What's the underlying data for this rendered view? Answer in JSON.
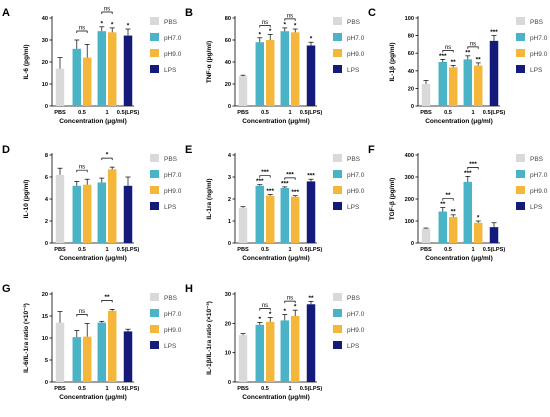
{
  "colors": {
    "PBS": "#d9d9d9",
    "pH7.0": "#4bb3c6",
    "pH9.0": "#f4b63b",
    "LPS": "#141a7a"
  },
  "chart_data": [
    {
      "type": "bar",
      "letter": "A",
      "ylabel": "IL-6 (pg/ml)",
      "xlabel": "Concentration (μg/ml)",
      "ylim": [
        0,
        40
      ],
      "yticks": [
        "0",
        "10",
        "20",
        "30",
        "40"
      ],
      "categories": [
        "PBS",
        "0.5",
        "1",
        "0.5(LPS)"
      ],
      "legend": [
        "PBS",
        "pH7.0",
        "pH9.0",
        "LPS"
      ],
      "bars": [
        {
          "series": "PBS",
          "cat": 0,
          "value": 17,
          "err": 5,
          "sig": ""
        },
        {
          "series": "pH7.0",
          "cat": 1,
          "value": 26,
          "err": 4,
          "sig": ""
        },
        {
          "series": "pH9.0",
          "cat": 1,
          "value": 22,
          "err": 6,
          "sig": ""
        },
        {
          "series": "pH7.0",
          "cat": 2,
          "value": 34,
          "err": 2,
          "sig": "*"
        },
        {
          "series": "pH9.0",
          "cat": 2,
          "value": 33.5,
          "err": 2,
          "sig": "*"
        },
        {
          "series": "LPS",
          "cat": 3,
          "value": 32,
          "err": 3,
          "sig": "*"
        }
      ],
      "brackets": [
        {
          "from": [
            1,
            0
          ],
          "to": [
            1,
            1
          ],
          "label": "ns",
          "level": 0
        },
        {
          "from": [
            2,
            0
          ],
          "to": [
            2,
            1
          ],
          "label": "ns",
          "level": 1
        }
      ]
    },
    {
      "type": "bar",
      "letter": "B",
      "ylabel": "TNF-α (pg/ml)",
      "xlabel": "Concentration (μg/ml)",
      "ylim": [
        0,
        80
      ],
      "yticks": [
        "0",
        "20",
        "40",
        "60",
        "80"
      ],
      "categories": [
        "PBS",
        "0.5",
        "1",
        "0.5(LPS)"
      ],
      "legend": [
        "PBS",
        "pH7.0",
        "pH9.0",
        "LPS"
      ],
      "bars": [
        {
          "series": "PBS",
          "cat": 0,
          "value": 27,
          "err": 1,
          "sig": ""
        },
        {
          "series": "pH7.0",
          "cat": 1,
          "value": 58,
          "err": 4,
          "sig": "*"
        },
        {
          "series": "pH9.0",
          "cat": 1,
          "value": 60,
          "err": 5,
          "sig": "*"
        },
        {
          "series": "pH7.0",
          "cat": 2,
          "value": 68,
          "err": 3,
          "sig": "*"
        },
        {
          "series": "pH9.0",
          "cat": 2,
          "value": 67,
          "err": 3,
          "sig": "*"
        },
        {
          "series": "LPS",
          "cat": 3,
          "value": 55,
          "err": 3,
          "sig": "*"
        }
      ],
      "brackets": [
        {
          "from": [
            1,
            0
          ],
          "to": [
            1,
            1
          ],
          "label": "ns",
          "level": 0
        },
        {
          "from": [
            2,
            0
          ],
          "to": [
            2,
            1
          ],
          "label": "ns",
          "level": 0
        }
      ]
    },
    {
      "type": "bar",
      "letter": "C",
      "ylabel": "IL-1β (pg/ml)",
      "xlabel": "Concentration (μg/ml)",
      "ylim": [
        0,
        100
      ],
      "yticks": [
        "0",
        "20",
        "40",
        "60",
        "80",
        "100"
      ],
      "categories": [
        "PBS",
        "0.5",
        "1",
        "0.5(LPS)"
      ],
      "legend": [
        "PBS",
        "pH7.0",
        "pH9.0",
        "LPS"
      ],
      "bars": [
        {
          "series": "PBS",
          "cat": 0,
          "value": 25,
          "err": 4,
          "sig": ""
        },
        {
          "series": "pH7.0",
          "cat": 1,
          "value": 50,
          "err": 3,
          "sig": "***"
        },
        {
          "series": "pH9.0",
          "cat": 1,
          "value": 44,
          "err": 2,
          "sig": "**"
        },
        {
          "series": "pH7.0",
          "cat": 2,
          "value": 53,
          "err": 4,
          "sig": "**"
        },
        {
          "series": "pH9.0",
          "cat": 2,
          "value": 46,
          "err": 3,
          "sig": "**"
        },
        {
          "series": "LPS",
          "cat": 3,
          "value": 74,
          "err": 6,
          "sig": "***"
        }
      ],
      "brackets": [
        {
          "from": [
            1,
            0
          ],
          "to": [
            1,
            1
          ],
          "label": "ns",
          "level": 0
        },
        {
          "from": [
            2,
            0
          ],
          "to": [
            2,
            1
          ],
          "label": "ns",
          "level": 0
        }
      ]
    },
    {
      "type": "bar",
      "letter": "D",
      "ylabel": "IL-10 (pg/ml)",
      "xlabel": "Concentration (μg/ml)",
      "ylim": [
        0,
        8
      ],
      "yticks": [
        "0",
        "2",
        "4",
        "6",
        "8"
      ],
      "categories": [
        "PBS",
        "0.5",
        "1",
        "0.5(LPS)"
      ],
      "legend": [
        "PBS",
        "pH7.0",
        "pH9.0",
        "LPS"
      ],
      "bars": [
        {
          "series": "PBS",
          "cat": 0,
          "value": 6.2,
          "err": 0.6,
          "sig": ""
        },
        {
          "series": "pH7.0",
          "cat": 1,
          "value": 5.2,
          "err": 0.4,
          "sig": ""
        },
        {
          "series": "pH9.0",
          "cat": 1,
          "value": 5.3,
          "err": 0.5,
          "sig": ""
        },
        {
          "series": "pH7.0",
          "cat": 2,
          "value": 5.5,
          "err": 0.4,
          "sig": ""
        },
        {
          "series": "pH9.0",
          "cat": 2,
          "value": 6.7,
          "err": 0.2,
          "sig": ""
        },
        {
          "series": "LPS",
          "cat": 3,
          "value": 5.2,
          "err": 0.8,
          "sig": ""
        }
      ],
      "brackets": [
        {
          "from": [
            1,
            0
          ],
          "to": [
            1,
            1
          ],
          "label": "ns",
          "level": 0
        },
        {
          "from": [
            2,
            0
          ],
          "to": [
            2,
            1
          ],
          "label": "*",
          "level": 0
        }
      ]
    },
    {
      "type": "bar",
      "letter": "E",
      "ylabel": "IL-1ra (ng/ml)",
      "xlabel": "Concentration (μg/ml)",
      "ylim": [
        0,
        4
      ],
      "yticks": [
        "0",
        "1",
        "2",
        "3",
        "4"
      ],
      "categories": [
        "PBS",
        "0.5",
        "1",
        "0.5(LPS)"
      ],
      "legend": [
        "PBS",
        "pH7.0",
        "pH9.0",
        "LPS"
      ],
      "bars": [
        {
          "series": "PBS",
          "cat": 0,
          "value": 1.6,
          "err": 0.05,
          "sig": ""
        },
        {
          "series": "pH7.0",
          "cat": 1,
          "value": 2.6,
          "err": 0.05,
          "sig": "***"
        },
        {
          "series": "pH9.0",
          "cat": 1,
          "value": 2.15,
          "err": 0.05,
          "sig": "***"
        },
        {
          "series": "pH7.0",
          "cat": 2,
          "value": 2.5,
          "err": 0.05,
          "sig": "***"
        },
        {
          "series": "pH9.0",
          "cat": 2,
          "value": 2.1,
          "err": 0.05,
          "sig": "***"
        },
        {
          "series": "LPS",
          "cat": 3,
          "value": 2.8,
          "err": 0.1,
          "sig": "***"
        }
      ],
      "brackets": [
        {
          "from": [
            1,
            0
          ],
          "to": [
            1,
            1
          ],
          "label": "***",
          "level": 0
        },
        {
          "from": [
            2,
            0
          ],
          "to": [
            2,
            1
          ],
          "label": "***",
          "level": 0
        }
      ]
    },
    {
      "type": "bar",
      "letter": "F",
      "ylabel": "TGF-β (pg/ml)",
      "xlabel": "Concentration (μg/ml)",
      "ylim": [
        0,
        400
      ],
      "yticks": [
        "0",
        "100",
        "200",
        "300",
        "400"
      ],
      "categories": [
        "PBS",
        "0.5",
        "1",
        "0.5(LPS)"
      ],
      "legend": [
        "PBS",
        "pH7.0",
        "pH9.0",
        "LPS"
      ],
      "bars": [
        {
          "series": "PBS",
          "cat": 0,
          "value": 65,
          "err": 3,
          "sig": ""
        },
        {
          "series": "pH7.0",
          "cat": 1,
          "value": 143,
          "err": 18,
          "sig": "**"
        },
        {
          "series": "pH9.0",
          "cat": 1,
          "value": 118,
          "err": 10,
          "sig": "**"
        },
        {
          "series": "pH7.0",
          "cat": 2,
          "value": 278,
          "err": 25,
          "sig": "***"
        },
        {
          "series": "pH9.0",
          "cat": 2,
          "value": 92,
          "err": 8,
          "sig": "*"
        },
        {
          "series": "LPS",
          "cat": 3,
          "value": 72,
          "err": 20,
          "sig": ""
        }
      ],
      "brackets": [
        {
          "from": [
            1,
            0
          ],
          "to": [
            1,
            1
          ],
          "label": "**",
          "level": 0
        },
        {
          "from": [
            2,
            0
          ],
          "to": [
            2,
            1
          ],
          "label": "***",
          "level": 0
        }
      ]
    },
    {
      "type": "bar",
      "letter": "G",
      "ylabel": "IL-6/IL-1ra ratio (×10⁻³)",
      "xlabel": "Concentration (μg/ml)",
      "ylim": [
        0,
        20
      ],
      "yticks": [
        "0",
        "5",
        "10",
        "15",
        "20"
      ],
      "categories": [
        "PBS",
        "0.5",
        "1",
        "0.5(LPS)"
      ],
      "legend": [
        "PBS",
        "pH7.0",
        "pH9.0",
        "LPS"
      ],
      "bars": [
        {
          "series": "PBS",
          "cat": 0,
          "value": 13.5,
          "err": 2.5,
          "sig": ""
        },
        {
          "series": "pH7.0",
          "cat": 1,
          "value": 10.2,
          "err": 1.5,
          "sig": ""
        },
        {
          "series": "pH9.0",
          "cat": 1,
          "value": 10.3,
          "err": 3,
          "sig": ""
        },
        {
          "series": "pH7.0",
          "cat": 2,
          "value": 13.5,
          "err": 0.3,
          "sig": ""
        },
        {
          "series": "pH9.0",
          "cat": 2,
          "value": 16.2,
          "err": 0.3,
          "sig": ""
        },
        {
          "series": "LPS",
          "cat": 3,
          "value": 11.5,
          "err": 0.5,
          "sig": ""
        }
      ],
      "brackets": [
        {
          "from": [
            1,
            0
          ],
          "to": [
            1,
            1
          ],
          "label": "ns",
          "level": 0
        },
        {
          "from": [
            2,
            0
          ],
          "to": [
            2,
            1
          ],
          "label": "**",
          "level": 0
        }
      ]
    },
    {
      "type": "bar",
      "letter": "H",
      "ylabel": "IL-1β/IL-1ra ratio (×10⁻³)",
      "xlabel": "Concentration (μg/ml)",
      "ylim": [
        0,
        30
      ],
      "yticks": [
        "0",
        "10",
        "20",
        "30"
      ],
      "categories": [
        "PBS",
        "0.5",
        "1",
        "0.5(LPS)"
      ],
      "legend": [
        "PBS",
        "pH7.0",
        "pH9.0",
        "LPS"
      ],
      "bars": [
        {
          "series": "PBS",
          "cat": 0,
          "value": 16,
          "err": 0.5,
          "sig": ""
        },
        {
          "series": "pH7.0",
          "cat": 1,
          "value": 19.5,
          "err": 0.8,
          "sig": "*"
        },
        {
          "series": "pH9.0",
          "cat": 1,
          "value": 20.5,
          "err": 1.5,
          "sig": "*"
        },
        {
          "series": "pH7.0",
          "cat": 2,
          "value": 21,
          "err": 2,
          "sig": "*"
        },
        {
          "series": "pH9.0",
          "cat": 2,
          "value": 22.5,
          "err": 2,
          "sig": "*"
        },
        {
          "series": "LPS",
          "cat": 3,
          "value": 26.5,
          "err": 1,
          "sig": "**"
        }
      ],
      "brackets": [
        {
          "from": [
            1,
            0
          ],
          "to": [
            1,
            1
          ],
          "label": "ns",
          "level": 0
        },
        {
          "from": [
            2,
            0
          ],
          "to": [
            2,
            1
          ],
          "label": "ns",
          "level": 0
        }
      ]
    }
  ]
}
